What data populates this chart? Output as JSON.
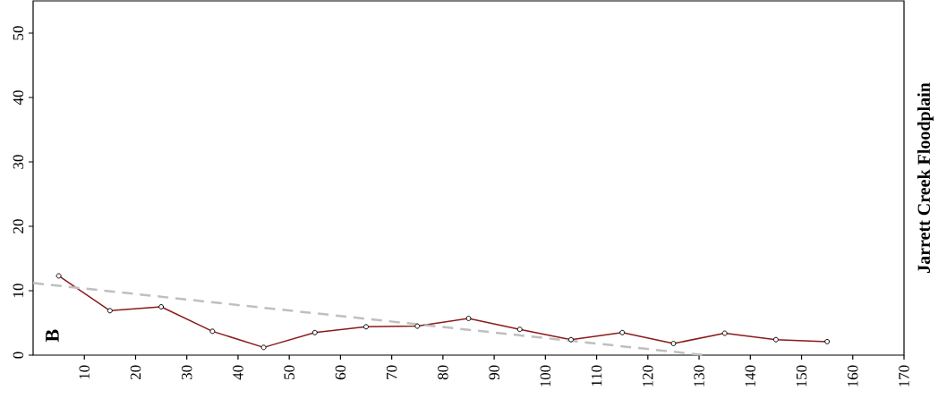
{
  "chart_data": {
    "type": "line",
    "title": "Jarrett Creek Floodplain",
    "annotations": [
      "B"
    ],
    "xlim": [
      0,
      170
    ],
    "xticks": [
      10,
      20,
      30,
      40,
      50,
      60,
      70,
      80,
      90,
      100,
      110,
      120,
      130,
      140,
      150,
      160,
      170
    ],
    "ylim": [
      0,
      55
    ],
    "yticks": [
      0,
      10,
      20,
      30,
      40,
      50
    ],
    "grid": false,
    "series": [
      {
        "color": "#8b1a1a",
        "marker": "circle",
        "line_style": "solid",
        "x": [
          5,
          15,
          25,
          35,
          45,
          55,
          65,
          75,
          85,
          95,
          105,
          115,
          125,
          135,
          145,
          155
        ],
        "values": [
          12.3,
          6.9,
          7.5,
          3.7,
          1.2,
          3.5,
          4.4,
          4.5,
          5.7,
          4.0,
          2.4,
          3.5,
          1.8,
          3.4,
          2.4,
          2.1
        ]
      },
      {
        "color": "#bfbfbf",
        "marker": "none",
        "line_style": "dashed",
        "x": [
          0,
          131
        ],
        "values": [
          11.2,
          0
        ]
      }
    ]
  }
}
